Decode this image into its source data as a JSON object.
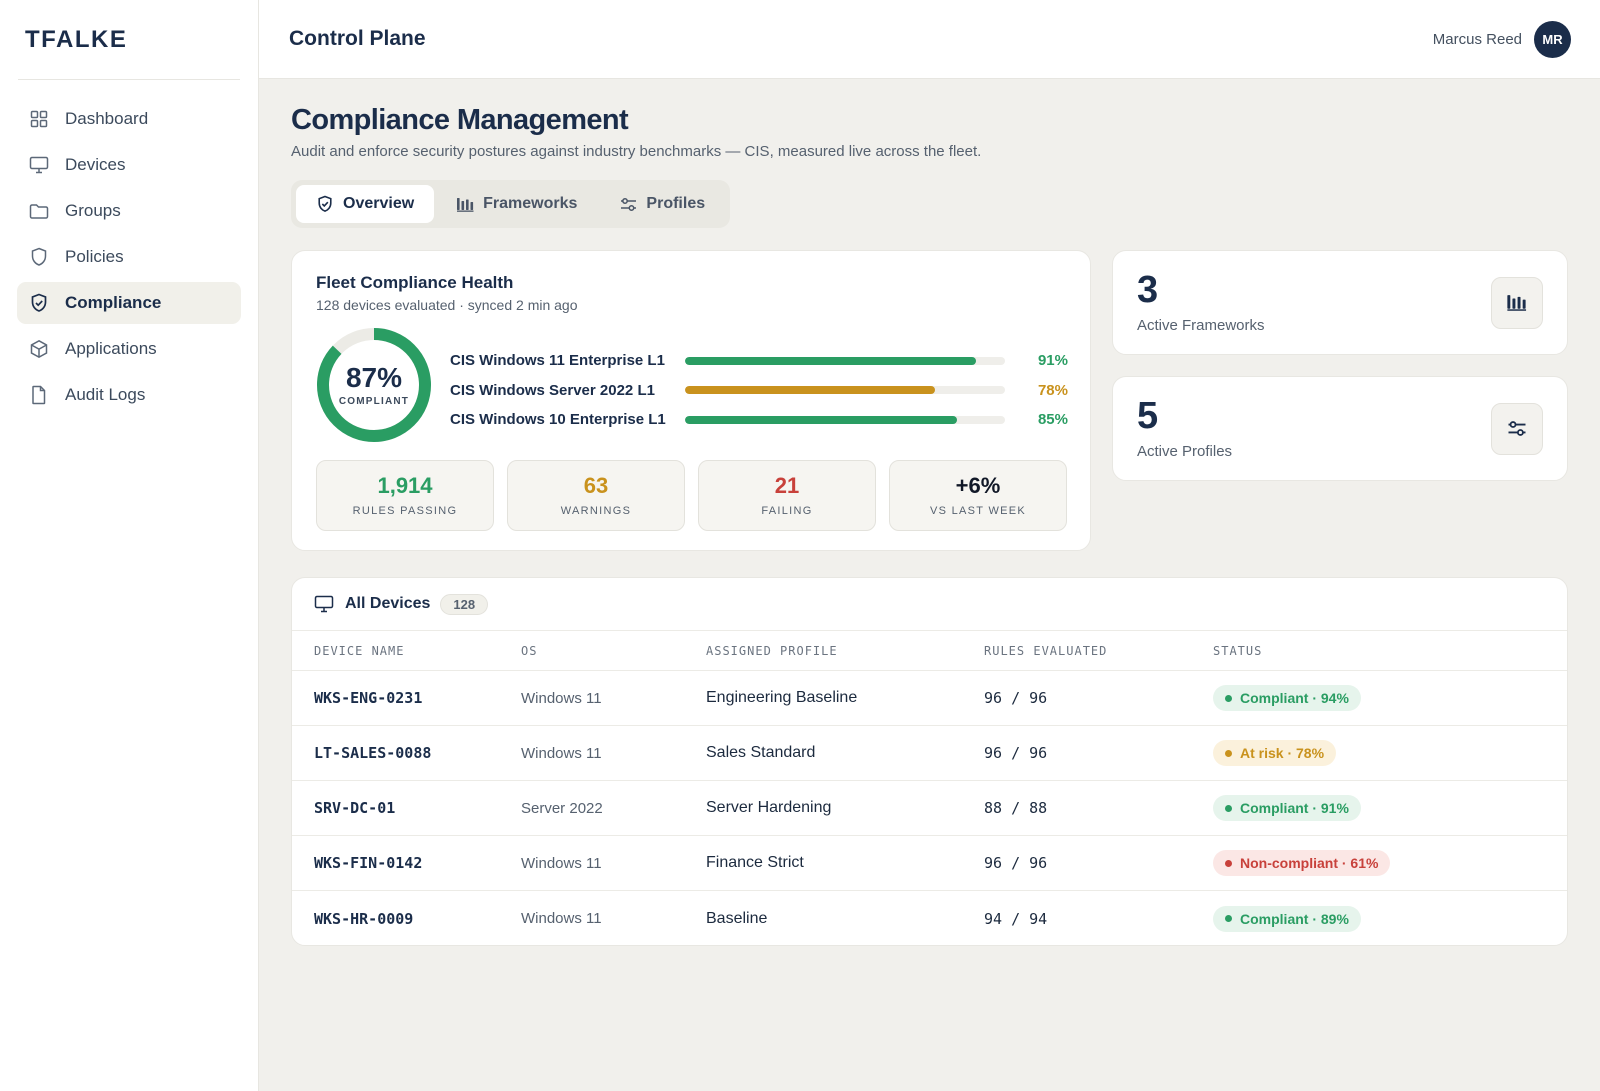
{
  "brand": "TFALKE",
  "sidebar": {
    "items": [
      {
        "label": "Dashboard",
        "icon": "grid-icon",
        "active": false
      },
      {
        "label": "Devices",
        "icon": "monitor-icon",
        "active": false
      },
      {
        "label": "Groups",
        "icon": "folder-icon",
        "active": false
      },
      {
        "label": "Policies",
        "icon": "shield-icon",
        "active": false
      },
      {
        "label": "Compliance",
        "icon": "shield-check-icon",
        "active": true
      },
      {
        "label": "Applications",
        "icon": "box-icon",
        "active": false
      },
      {
        "label": "Audit Logs",
        "icon": "file-icon",
        "active": false
      }
    ]
  },
  "topbar": {
    "title": "Control Plane",
    "user_name": "Marcus Reed",
    "user_initials": "MR"
  },
  "page": {
    "title": "Compliance Management",
    "subtitle": "Audit and enforce security postures against industry benchmarks — CIS, measured live across the fleet."
  },
  "tabs": [
    {
      "label": "Overview",
      "icon": "shield-check-icon",
      "active": true
    },
    {
      "label": "Frameworks",
      "icon": "bar-chart-icon",
      "active": false
    },
    {
      "label": "Profiles",
      "icon": "sliders-icon",
      "active": false
    }
  ],
  "health": {
    "title": "Fleet Compliance Health",
    "subtitle": "128 devices evaluated · synced 2 min ago",
    "overall_pct": "87%",
    "overall_value": 0.87,
    "overall_label": "COMPLIANT",
    "frameworks": [
      {
        "name": "CIS Windows 11 Enterprise L1",
        "pct": "91%",
        "value": 0.91,
        "color": "#2a9d63"
      },
      {
        "name": "CIS Windows Server 2022 L1",
        "pct": "78%",
        "value": 0.78,
        "color": "#c9921d"
      },
      {
        "name": "CIS Windows 10 Enterprise L1",
        "pct": "85%",
        "value": 0.85,
        "color": "#2a9d63"
      }
    ],
    "stats": [
      {
        "value": "1,914",
        "label": "RULES PASSING",
        "color": "#2a9d63"
      },
      {
        "value": "63",
        "label": "WARNINGS",
        "color": "#c9921d"
      },
      {
        "value": "21",
        "label": "FAILING",
        "color": "#c8413b"
      },
      {
        "value": "+6%",
        "label": "VS LAST WEEK",
        "color": "#111827"
      }
    ]
  },
  "kpis": [
    {
      "value": "3",
      "label": "Active Frameworks",
      "icon": "bar-chart-icon"
    },
    {
      "value": "5",
      "label": "Active Profiles",
      "icon": "sliders-icon"
    }
  ],
  "devices": {
    "title": "All Devices",
    "count": "128",
    "columns": [
      "DEVICE NAME",
      "OS",
      "ASSIGNED PROFILE",
      "RULES EVALUATED",
      "STATUS"
    ],
    "rows": [
      {
        "name": "WKS-ENG-0231",
        "os": "Windows 11",
        "profile": "Engineering Baseline",
        "rules": "96 / 96",
        "status": "Compliant · 94%",
        "status_kind": "ok"
      },
      {
        "name": "LT-SALES-0088",
        "os": "Windows 11",
        "profile": "Sales Standard",
        "rules": "96 / 96",
        "status": "At risk · 78%",
        "status_kind": "warn"
      },
      {
        "name": "SRV-DC-01",
        "os": "Server 2022",
        "profile": "Server Hardening",
        "rules": "88 / 88",
        "status": "Compliant · 91%",
        "status_kind": "ok"
      },
      {
        "name": "WKS-FIN-0142",
        "os": "Windows 11",
        "profile": "Finance Strict",
        "rules": "96 / 96",
        "status": "Non-compliant · 61%",
        "status_kind": "bad"
      },
      {
        "name": "WKS-HR-0009",
        "os": "Windows 11",
        "profile": "Baseline",
        "rules": "94 / 94",
        "status": "Compliant · 89%",
        "status_kind": "ok"
      }
    ]
  },
  "colors": {
    "ok": "#2a9d63",
    "ok_bg": "#e6f4ec",
    "warn": "#c9921d",
    "warn_bg": "#fbf1dc",
    "bad": "#c8413b",
    "bad_bg": "#fbe7e5",
    "track": "#ecebe6"
  }
}
